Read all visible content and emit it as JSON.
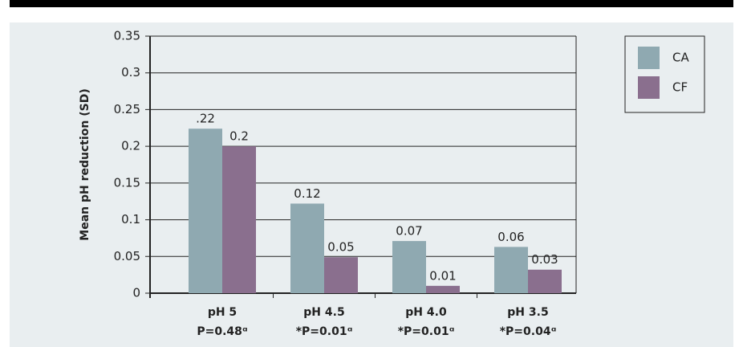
{
  "chart_data": {
    "type": "bar",
    "y_label": "Mean pH reduction (SD)",
    "categories": [
      "pH 5",
      "pH 4.5",
      "pH 4.0",
      "pH 3.5"
    ],
    "category_notes": [
      "P=0.48ᵅ",
      "*P=0.01ᵅ",
      "*P=0.01ᵅ",
      "*P=0.04ᵅ"
    ],
    "series": [
      {
        "name": "CA",
        "color": "#8fa9b1",
        "values": [
          0.224,
          0.122,
          0.071,
          0.063
        ],
        "value_labels": [
          ".22",
          "0.12",
          "0.07",
          "0.06"
        ]
      },
      {
        "name": "CF",
        "color": "#8a6f8e",
        "values": [
          0.2,
          0.049,
          0.01,
          0.032
        ],
        "value_labels": [
          "0.2",
          "0.05",
          "0.01",
          "0.03"
        ]
      }
    ],
    "ylim": [
      0,
      0.35
    ],
    "yticks": [
      0,
      0.05,
      0.1,
      0.15,
      0.2,
      0.25,
      0.3,
      0.35
    ],
    "grid": true,
    "legend": "top-right"
  }
}
